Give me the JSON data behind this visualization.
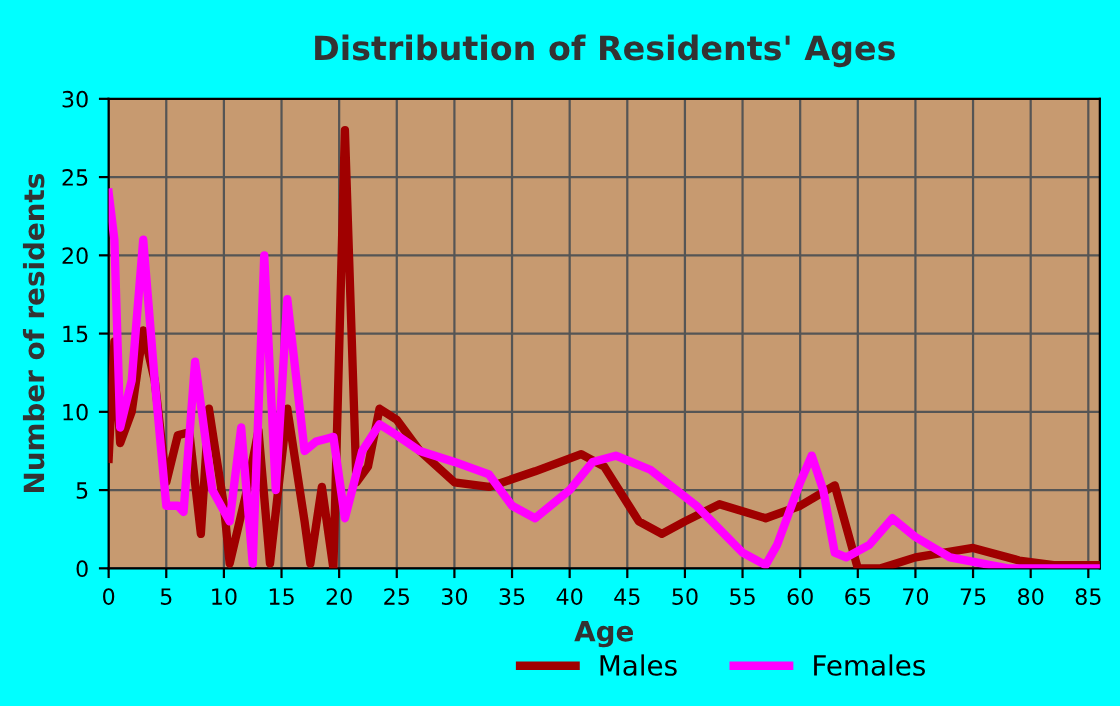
{
  "chart_data": {
    "type": "line",
    "title": "Distribution of Residents' Ages",
    "xlabel": "Age",
    "ylabel": "Number of residents",
    "xlim": [
      0,
      86
    ],
    "xticks": [
      0,
      5,
      10,
      15,
      20,
      25,
      30,
      35,
      40,
      45,
      50,
      55,
      60,
      65,
      70,
      75,
      80,
      85
    ],
    "ylim": [
      0,
      30
    ],
    "yticks": [
      0,
      5,
      10,
      15,
      20,
      25,
      30
    ],
    "grid": true,
    "legend": "bottom",
    "marker": "none",
    "line_style": "solid",
    "series": [
      {
        "name": "Males",
        "color": "#a00000",
        "x": [
          0,
          0.5,
          1,
          2,
          3,
          4,
          5,
          6,
          7,
          8,
          8.7,
          10,
          10.5,
          12,
          13,
          14,
          15.5,
          17,
          17.5,
          18.5,
          19.5,
          20.5,
          21.5,
          22.5,
          23.5,
          25,
          27,
          30,
          33,
          37,
          41,
          43,
          46,
          48,
          50,
          53,
          57,
          60,
          63,
          65,
          67,
          70,
          75,
          79,
          82,
          86
        ],
        "values": [
          7,
          14.5,
          8,
          10,
          15.2,
          12,
          5.5,
          8.5,
          8.7,
          2.2,
          10.2,
          4,
          0.3,
          5,
          8.8,
          0.3,
          10.2,
          3,
          0.3,
          5.2,
          0,
          28,
          5.5,
          6.5,
          10.2,
          9.5,
          7.5,
          5.5,
          5.2,
          6.2,
          7.3,
          6.5,
          3,
          2.2,
          3,
          4.1,
          3.2,
          4,
          5.3,
          0,
          0,
          0.7,
          1.3,
          0.5,
          0.2,
          0.2
        ]
      },
      {
        "name": "Females",
        "color": "#ff00ff",
        "x": [
          0,
          0.5,
          1,
          2,
          3,
          4,
          5,
          6,
          6.5,
          7.5,
          9,
          10.5,
          11.5,
          12.5,
          13.5,
          14.5,
          15.5,
          17,
          18,
          19,
          19.5,
          20.5,
          22,
          23.5,
          25,
          27,
          30,
          33,
          35,
          37,
          40,
          42,
          44,
          47,
          51,
          55,
          57,
          58,
          60,
          61,
          62,
          63,
          64,
          66,
          68,
          70,
          73,
          78,
          86
        ],
        "values": [
          24,
          21,
          9,
          12,
          21,
          12,
          4,
          4,
          3.6,
          13.2,
          5,
          3,
          9,
          0.3,
          20,
          5,
          17.2,
          7.5,
          8.1,
          8.3,
          8.4,
          3.2,
          7.5,
          9.2,
          8.5,
          7.5,
          6.8,
          6,
          4,
          3.2,
          5,
          6.8,
          7.2,
          6.3,
          4,
          1,
          0.2,
          1.5,
          5.5,
          7.2,
          5,
          1,
          0.7,
          1.5,
          3.2,
          2,
          0.7,
          0,
          0
        ]
      }
    ]
  }
}
